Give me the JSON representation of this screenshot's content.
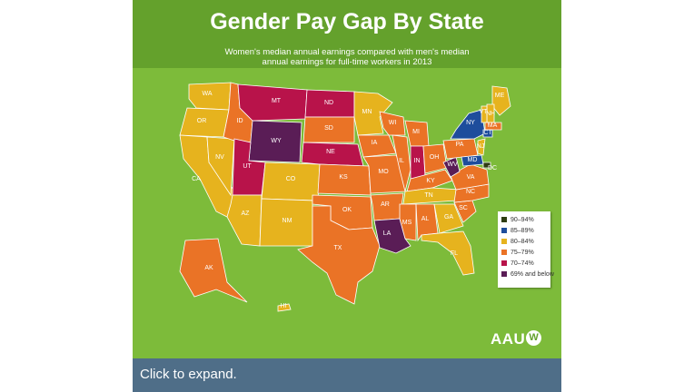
{
  "title": "Gender Pay Gap By State",
  "subtitle_line1": "Women's median annual earnings compared with men's median",
  "subtitle_line2": "annual earnings for full-time workers in 2013",
  "legend": [
    {
      "label": "90–94%",
      "color": "#2f3d12"
    },
    {
      "label": "85–89%",
      "color": "#1e4d9c"
    },
    {
      "label": "80–84%",
      "color": "#e6b31e"
    },
    {
      "label": "75–79%",
      "color": "#ea7326"
    },
    {
      "label": "70–74%",
      "color": "#b8134a"
    },
    {
      "label": "69% and below",
      "color": "#5a1d56"
    }
  ],
  "states": [
    {
      "abbr": "WA",
      "color": "#e6b31e"
    },
    {
      "abbr": "OR",
      "color": "#e6b31e"
    },
    {
      "abbr": "CA",
      "color": "#e6b31e"
    },
    {
      "abbr": "NV",
      "color": "#e6b31e"
    },
    {
      "abbr": "ID",
      "color": "#ea7326"
    },
    {
      "abbr": "MT",
      "color": "#b8134a"
    },
    {
      "abbr": "WY",
      "color": "#5a1d56"
    },
    {
      "abbr": "UT",
      "color": "#b8134a"
    },
    {
      "abbr": "AZ",
      "color": "#e6b31e"
    },
    {
      "abbr": "CO",
      "color": "#e6b31e"
    },
    {
      "abbr": "NM",
      "color": "#e6b31e"
    },
    {
      "abbr": "ND",
      "color": "#b8134a"
    },
    {
      "abbr": "SD",
      "color": "#ea7326"
    },
    {
      "abbr": "NE",
      "color": "#b8134a"
    },
    {
      "abbr": "KS",
      "color": "#ea7326"
    },
    {
      "abbr": "OK",
      "color": "#ea7326"
    },
    {
      "abbr": "TX",
      "color": "#ea7326"
    },
    {
      "abbr": "MN",
      "color": "#e6b31e"
    },
    {
      "abbr": "IA",
      "color": "#ea7326"
    },
    {
      "abbr": "MO",
      "color": "#ea7326"
    },
    {
      "abbr": "AR",
      "color": "#ea7326"
    },
    {
      "abbr": "LA",
      "color": "#5a1d56"
    },
    {
      "abbr": "WI",
      "color": "#ea7326"
    },
    {
      "abbr": "IL",
      "color": "#ea7326"
    },
    {
      "abbr": "MI",
      "color": "#ea7326"
    },
    {
      "abbr": "IN",
      "color": "#b8134a"
    },
    {
      "abbr": "OH",
      "color": "#ea7326"
    },
    {
      "abbr": "KY",
      "color": "#ea7326"
    },
    {
      "abbr": "TN",
      "color": "#e6b31e"
    },
    {
      "abbr": "MS",
      "color": "#ea7326"
    },
    {
      "abbr": "AL",
      "color": "#ea7326"
    },
    {
      "abbr": "GA",
      "color": "#e6b31e"
    },
    {
      "abbr": "FL",
      "color": "#e6b31e"
    },
    {
      "abbr": "SC",
      "color": "#ea7326"
    },
    {
      "abbr": "NC",
      "color": "#ea7326"
    },
    {
      "abbr": "VA",
      "color": "#ea7326"
    },
    {
      "abbr": "WV",
      "color": "#5a1d56"
    },
    {
      "abbr": "PA",
      "color": "#ea7326"
    },
    {
      "abbr": "NY",
      "color": "#1e4d9c"
    },
    {
      "abbr": "ME",
      "color": "#e6b31e"
    },
    {
      "abbr": "NH",
      "color": "#e6b31e"
    },
    {
      "abbr": "VT",
      "color": "#e6b31e"
    },
    {
      "abbr": "MA",
      "color": "#ea7326"
    },
    {
      "abbr": "CT",
      "color": "#1e4d9c"
    },
    {
      "abbr": "NJ",
      "color": "#e6b31e"
    },
    {
      "abbr": "MD",
      "color": "#1e4d9c"
    },
    {
      "abbr": "DC",
      "color": "#2f3d12"
    },
    {
      "abbr": "AK",
      "color": "#ea7326"
    },
    {
      "abbr": "HI",
      "color": "#e6b31e"
    }
  ],
  "logo_text": "AAU",
  "logo_mark": "W",
  "expand_label": "Click to expand."
}
